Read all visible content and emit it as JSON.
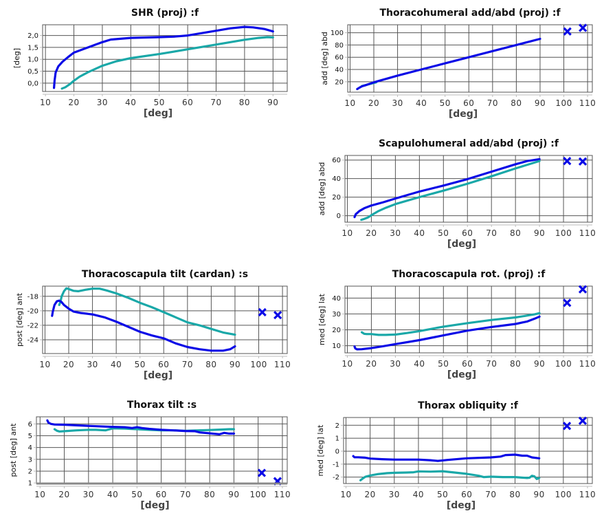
{
  "colors": {
    "series_blue": "#0b0be6",
    "series_teal": "#1aa8a8",
    "grid": "#555555",
    "axis": "#bbbbbb"
  },
  "chart_data": [
    {
      "id": "shr",
      "type": "line",
      "title": "SHR (proj) :f",
      "xlabel": "[deg]",
      "ylabel": "[deg]",
      "xlim": [
        9,
        95
      ],
      "ylim": [
        -0.35,
        2.45
      ],
      "xticks": [
        10,
        20,
        30,
        40,
        50,
        60,
        70,
        80,
        90
      ],
      "yticks": [
        0.0,
        0.5,
        1.0,
        1.5,
        2.0
      ],
      "ytick_labels": [
        "0,0",
        "0,5",
        "1,0",
        "1,5",
        "2,0"
      ],
      "grid": true,
      "series": [
        {
          "name": "blue",
          "color": "#0b0be6",
          "x": [
            13,
            13.2,
            13.6,
            14.5,
            16,
            18,
            20,
            25,
            30,
            33,
            40,
            50,
            55,
            60,
            70,
            75,
            80,
            83,
            87,
            90
          ],
          "y": [
            -0.2,
            0.1,
            0.45,
            0.7,
            0.9,
            1.1,
            1.28,
            1.5,
            1.72,
            1.83,
            1.9,
            1.93,
            1.95,
            2.0,
            2.2,
            2.3,
            2.36,
            2.34,
            2.27,
            2.17
          ]
        },
        {
          "name": "teal",
          "color": "#1aa8a8",
          "x": [
            15.8,
            17,
            18.5,
            20,
            22,
            25,
            30,
            35,
            40,
            50,
            60,
            70,
            80,
            85,
            88,
            90
          ],
          "y": [
            -0.23,
            -0.17,
            -0.05,
            0.1,
            0.27,
            0.46,
            0.73,
            0.92,
            1.05,
            1.22,
            1.42,
            1.62,
            1.82,
            1.9,
            1.93,
            1.92
          ]
        }
      ],
      "markers": []
    },
    {
      "id": "thoracohumeral",
      "type": "line",
      "title": "Thoracohumeral add/abd (proj) :f",
      "xlabel": "[deg]",
      "ylabel": "add [deg] abd",
      "xlim": [
        9,
        112
      ],
      "ylim": [
        3,
        113
      ],
      "xticks": [
        10,
        20,
        30,
        40,
        50,
        60,
        70,
        80,
        90,
        100,
        110
      ],
      "yticks": [
        20,
        40,
        60,
        80,
        100
      ],
      "ytick_labels": [
        "20",
        "40",
        "60",
        "80",
        "100"
      ],
      "grid": true,
      "series": [
        {
          "name": "teal",
          "color": "#1aa8a8",
          "x": [
            15,
            17,
            19,
            21
          ],
          "y": [
            13,
            15,
            17,
            19
          ]
        },
        {
          "name": "blue",
          "color": "#0b0be6",
          "x": [
            13,
            14,
            15,
            17,
            20,
            30,
            40,
            50,
            60,
            70,
            80,
            90
          ],
          "y": [
            8,
            10.5,
            12.5,
            15,
            19,
            30,
            40,
            50,
            60,
            70,
            80,
            90
          ]
        }
      ],
      "markers": [
        {
          "x": 101.5,
          "y": 102
        },
        {
          "x": 108,
          "y": 108
        }
      ]
    },
    {
      "id": "scapulohumeral",
      "type": "line",
      "title": "Scapulohumeral add/abd (proj) :f",
      "xlabel": "[deg]",
      "ylabel": "add [deg] abd",
      "xlim": [
        9,
        112
      ],
      "ylim": [
        -7,
        65
      ],
      "xticks": [
        10,
        20,
        30,
        40,
        50,
        60,
        70,
        80,
        90,
        100,
        110
      ],
      "yticks": [
        0,
        20,
        40,
        60
      ],
      "ytick_labels": [
        "0",
        "20",
        "40",
        "60"
      ],
      "grid": true,
      "series": [
        {
          "name": "blue",
          "color": "#0b0be6",
          "x": [
            13,
            13.5,
            15,
            17,
            20,
            25,
            30,
            40,
            50,
            60,
            70,
            80,
            85,
            90
          ],
          "y": [
            -1.5,
            1.5,
            5,
            8,
            11,
            14.5,
            18.5,
            26,
            32.5,
            39.5,
            47.5,
            55.5,
            59,
            61
          ]
        },
        {
          "name": "teal",
          "color": "#1aa8a8",
          "x": [
            15.8,
            17,
            18.5,
            20,
            23,
            26,
            30,
            40,
            50,
            60,
            70,
            80,
            85,
            90
          ],
          "y": [
            -4.5,
            -3.5,
            -2,
            0.5,
            5,
            8.5,
            12.5,
            20,
            27,
            34.5,
            42.5,
            51,
            55,
            59
          ]
        }
      ],
      "markers": [
        {
          "x": 101.5,
          "y": 59
        },
        {
          "x": 108,
          "y": 58.5
        }
      ]
    },
    {
      "id": "thoracoscapula-tilt",
      "type": "line",
      "title": "Thoracoscapula tilt (cardan) :s",
      "xlabel": "[deg]",
      "ylabel": "post [deg] ant",
      "xlim": [
        9,
        112
      ],
      "ylim": [
        -25.9,
        -16.6
      ],
      "xticks": [
        10,
        20,
        30,
        40,
        50,
        60,
        70,
        80,
        90,
        100,
        110
      ],
      "yticks": [
        -24,
        -22,
        -20,
        -18
      ],
      "ytick_labels": [
        "-24",
        "-22",
        "-20",
        "-18"
      ],
      "grid": true,
      "series": [
        {
          "name": "teal",
          "color": "#1aa8a8",
          "x": [
            16,
            16.5,
            17,
            18,
            19,
            20,
            22,
            24,
            27,
            30,
            33,
            36,
            40,
            45,
            50,
            55,
            60,
            65,
            70,
            75,
            80,
            85,
            90
          ],
          "y": [
            -19.2,
            -18.8,
            -18,
            -17.3,
            -16.9,
            -17.0,
            -17.25,
            -17.3,
            -17.1,
            -16.95,
            -16.95,
            -17.2,
            -17.6,
            -18.2,
            -18.9,
            -19.5,
            -20.2,
            -20.9,
            -21.6,
            -22.0,
            -22.5,
            -23.0,
            -23.3
          ]
        },
        {
          "name": "blue",
          "color": "#0b0be6",
          "x": [
            13,
            13.3,
            14,
            15,
            16,
            17,
            18,
            20,
            22,
            25,
            30,
            35,
            40,
            45,
            50,
            55,
            60,
            65,
            70,
            75,
            80,
            85,
            88,
            90
          ],
          "y": [
            -20.7,
            -20.1,
            -19.2,
            -18.7,
            -18.6,
            -18.8,
            -19.2,
            -19.7,
            -20.1,
            -20.3,
            -20.5,
            -20.9,
            -21.5,
            -22.2,
            -22.9,
            -23.4,
            -23.8,
            -24.5,
            -25.0,
            -25.3,
            -25.5,
            -25.5,
            -25.3,
            -24.9
          ]
        }
      ],
      "markers": [
        {
          "x": 101.5,
          "y": -20.2
        },
        {
          "x": 108,
          "y": -20.6
        }
      ]
    },
    {
      "id": "thoracoscapula-rot",
      "type": "line",
      "title": "Thoracoscapula rot. (proj) :f",
      "xlabel": "[deg]",
      "ylabel": "med [deg] lat",
      "xlim": [
        9,
        112
      ],
      "ylim": [
        5.5,
        47.5
      ],
      "xticks": [
        10,
        20,
        30,
        40,
        50,
        60,
        70,
        80,
        90,
        100,
        110
      ],
      "yticks": [
        10,
        20,
        30,
        40
      ],
      "ytick_labels": [
        "10",
        "20",
        "30",
        "40"
      ],
      "grid": true,
      "series": [
        {
          "name": "teal",
          "color": "#1aa8a8",
          "x": [
            16,
            17,
            18,
            20,
            23,
            26,
            30,
            35,
            40,
            50,
            60,
            70,
            80,
            85,
            88,
            90
          ],
          "y": [
            18.5,
            17.5,
            17.3,
            17.3,
            16.8,
            16.8,
            17.0,
            18,
            19.2,
            22,
            24.2,
            26.2,
            27.8,
            29,
            29.8,
            30.5
          ]
        },
        {
          "name": "blue",
          "color": "#0b0be6",
          "x": [
            13,
            13.3,
            14,
            16,
            20,
            25,
            30,
            40,
            50,
            60,
            70,
            80,
            85,
            88,
            90
          ],
          "y": [
            9.5,
            8.3,
            7.7,
            7.8,
            8.5,
            9.7,
            11,
            13.5,
            16.5,
            19.5,
            21.8,
            23.7,
            25.3,
            27,
            28.3
          ]
        }
      ],
      "markers": [
        {
          "x": 101.5,
          "y": 37
        },
        {
          "x": 108,
          "y": 45.5
        }
      ]
    },
    {
      "id": "thorax-tilt",
      "type": "line",
      "title": "Thorax tilt :s",
      "xlabel": "[deg]",
      "ylabel": "post [deg] ant",
      "xlim": [
        8.5,
        112
      ],
      "ylim": [
        0.95,
        6.6
      ],
      "xticks": [
        10,
        20,
        30,
        40,
        50,
        60,
        70,
        80,
        90,
        100,
        110
      ],
      "yticks": [
        1,
        2,
        3,
        4,
        5,
        6
      ],
      "ytick_labels": [
        "1",
        "2",
        "3",
        "4",
        "5",
        "6"
      ],
      "grid": true,
      "series": [
        {
          "name": "teal",
          "color": "#1aa8a8",
          "x": [
            16,
            17,
            18,
            20,
            25,
            30,
            33,
            37,
            40,
            45,
            50,
            55,
            60,
            65,
            70,
            75,
            80,
            85,
            88,
            90
          ],
          "y": [
            5.55,
            5.42,
            5.36,
            5.38,
            5.45,
            5.5,
            5.5,
            5.45,
            5.62,
            5.6,
            5.55,
            5.5,
            5.45,
            5.45,
            5.42,
            5.45,
            5.48,
            5.52,
            5.55,
            5.55
          ]
        },
        {
          "name": "blue",
          "color": "#0b0be6",
          "x": [
            13,
            13.5,
            14.5,
            16,
            20,
            30,
            40,
            45,
            48,
            50,
            52,
            55,
            60,
            65,
            70,
            74,
            76,
            80,
            84,
            86,
            88,
            90
          ],
          "y": [
            6.3,
            6.1,
            6.0,
            5.95,
            5.93,
            5.83,
            5.75,
            5.72,
            5.65,
            5.72,
            5.65,
            5.58,
            5.5,
            5.45,
            5.4,
            5.38,
            5.28,
            5.2,
            5.12,
            5.24,
            5.18,
            5.18
          ]
        }
      ],
      "markers": [
        {
          "x": 101.5,
          "y": 1.85
        },
        {
          "x": 108,
          "y": 1.15
        }
      ]
    },
    {
      "id": "thorax-obliquity",
      "type": "line",
      "title": "Thorax obliquity :f",
      "xlabel": "[deg]",
      "ylabel": "med [deg] lat",
      "xlim": [
        9,
        112
      ],
      "ylim": [
        -2.5,
        2.6
      ],
      "xticks": [
        10,
        20,
        30,
        40,
        50,
        60,
        70,
        80,
        90,
        100,
        110
      ],
      "yticks": [
        -2,
        -1,
        0,
        1,
        2
      ],
      "ytick_labels": [
        "-2",
        "-1",
        "0",
        "1",
        "2"
      ],
      "grid": true,
      "series": [
        {
          "name": "blue",
          "color": "#0b0be6",
          "x": [
            13,
            13.5,
            15,
            18,
            20,
            25,
            30,
            40,
            45,
            48,
            52,
            60,
            70,
            74,
            76,
            80,
            83,
            85,
            87,
            90
          ],
          "y": [
            -0.38,
            -0.47,
            -0.47,
            -0.5,
            -0.57,
            -0.62,
            -0.65,
            -0.65,
            -0.7,
            -0.75,
            -0.68,
            -0.55,
            -0.48,
            -0.42,
            -0.3,
            -0.27,
            -0.35,
            -0.35,
            -0.48,
            -0.55
          ]
        },
        {
          "name": "teal",
          "color": "#1aa8a8",
          "x": [
            16,
            17,
            18,
            20,
            23,
            27,
            30,
            35,
            38,
            40,
            45,
            50,
            55,
            60,
            65,
            67,
            70,
            75,
            80,
            85,
            86,
            87,
            88,
            89,
            90
          ],
          "y": [
            -2.25,
            -2.1,
            -1.98,
            -1.88,
            -1.78,
            -1.7,
            -1.67,
            -1.65,
            -1.63,
            -1.56,
            -1.58,
            -1.55,
            -1.65,
            -1.75,
            -1.9,
            -2.0,
            -1.97,
            -2.0,
            -2.0,
            -2.07,
            -2.05,
            -1.9,
            -1.95,
            -2.15,
            -2.07
          ]
        }
      ],
      "markers": [
        {
          "x": 101.5,
          "y": 1.95
        },
        {
          "x": 108,
          "y": 2.35
        }
      ]
    }
  ]
}
